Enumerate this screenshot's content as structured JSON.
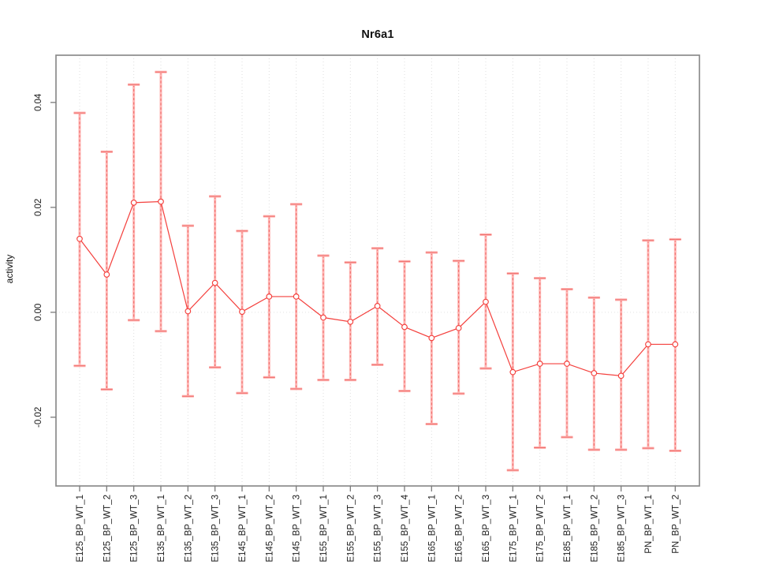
{
  "figure": {
    "title": "Nr6a1",
    "ylabel": "activity"
  },
  "chart_data": {
    "type": "line",
    "title": "Nr6a1",
    "xlabel": "",
    "ylabel": "activity",
    "legend": "none",
    "grid": {
      "vertical_dotted": true,
      "zero_line_dotted": true
    },
    "categories": [
      "E125_BP_WT_1",
      "E125_BP_WT_2",
      "E125_BP_WT_3",
      "E135_BP_WT_1",
      "E135_BP_WT_2",
      "E135_BP_WT_3",
      "E145_BP_WT_1",
      "E145_BP_WT_2",
      "E145_BP_WT_3",
      "E155_BP_WT_1",
      "E155_BP_WT_2",
      "E155_BP_WT_3",
      "E155_BP_WT_4",
      "E165_BP_WT_1",
      "E165_BP_WT_2",
      "E165_BP_WT_3",
      "E175_BP_WT_1",
      "E175_BP_WT_2",
      "E185_BP_WT_1",
      "E185_BP_WT_2",
      "E185_BP_WT_3",
      "PN_BP_WT_1",
      "PN_BP_WT_2"
    ],
    "series": [
      {
        "name": "activity",
        "values": [
          0.014,
          0.0072,
          0.0209,
          0.0211,
          0.0002,
          0.0056,
          0.0001,
          0.003,
          0.003,
          -0.001,
          -0.0018,
          0.0012,
          -0.0028,
          -0.0049,
          -0.003,
          0.002,
          -0.0114,
          -0.0098,
          -0.0098,
          -0.0116,
          -0.0121,
          -0.0061,
          -0.0061
        ],
        "upper": [
          0.038,
          0.0306,
          0.0434,
          0.0458,
          0.0165,
          0.0221,
          0.0155,
          0.0183,
          0.0206,
          0.0108,
          0.0095,
          0.0122,
          0.0097,
          0.0114,
          0.0098,
          0.0148,
          0.0074,
          0.0065,
          0.0044,
          0.0028,
          0.0024,
          0.0137,
          0.0139
        ],
        "lower": [
          -0.0102,
          -0.0147,
          -0.0015,
          -0.0036,
          -0.016,
          -0.0105,
          -0.0154,
          -0.0124,
          -0.0146,
          -0.0129,
          -0.0129,
          -0.01,
          -0.015,
          -0.0213,
          -0.0155,
          -0.0107,
          -0.0301,
          -0.0258,
          -0.0238,
          -0.0262,
          -0.0262,
          -0.0259,
          -0.0264
        ]
      }
    ],
    "yticks": [
      0.04,
      0.02,
      0.0,
      -0.02
    ],
    "ytick_labels": [
      "0.04",
      "0.02",
      "0.00",
      "-0.02"
    ],
    "ylim": [
      -0.0331,
      0.049
    ],
    "colors": {
      "point": "#f4403d",
      "line": "#f4403d",
      "errorbar_light": "#ffb6b4",
      "errorbar_dash": "#ef6f6d",
      "gridline": "#dedede",
      "zero_line": "#e3e3e3",
      "axis_box": "#8c8c8c",
      "tick": "#7a7a7a",
      "text": "#1c1c1c"
    }
  }
}
